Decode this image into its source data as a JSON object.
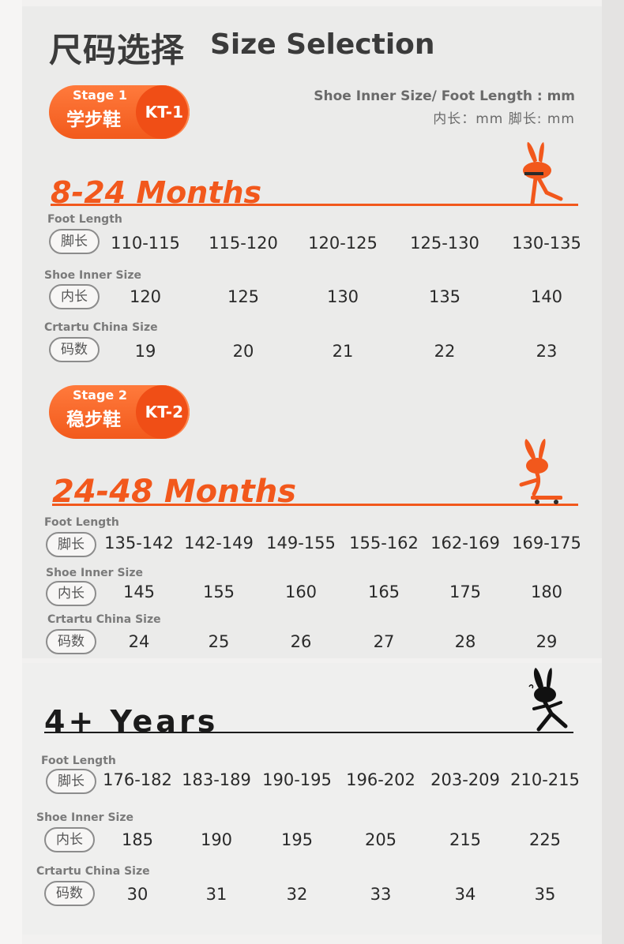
{
  "header": {
    "title_cn": "尺码选择",
    "title_en": "Size Selection"
  },
  "note": {
    "line1": "Shoe Inner Size/ Foot Length : mm",
    "line2": "内长：mm   脚长: mm"
  },
  "row_labels": {
    "foot_length": "Foot Length",
    "inner_size": "Shoe Inner Size",
    "china_size": "Crtartu China Size"
  },
  "chips": {
    "foot_length": "脚长",
    "inner_size": "内长",
    "china_size": "码数"
  },
  "sections": [
    {
      "stage": "Stage 1",
      "stage_cn": "学步鞋",
      "code": "KT-1",
      "range": "8-24 Months",
      "foot_length": [
        "110-115",
        "115-120",
        "120-125",
        "125-130",
        "130-135"
      ],
      "inner_size": [
        "120",
        "125",
        "130",
        "135",
        "140"
      ],
      "china_size": [
        "19",
        "20",
        "21",
        "22",
        "23"
      ]
    },
    {
      "stage": "Stage 2",
      "stage_cn": "稳步鞋",
      "code": "KT-2",
      "range": "24-48 Months",
      "foot_length": [
        "135-142",
        "142-149",
        "149-155",
        "155-162",
        "162-169",
        "169-175"
      ],
      "inner_size": [
        "145",
        "155",
        "160",
        "165",
        "175",
        "180"
      ],
      "china_size": [
        "24",
        "25",
        "26",
        "27",
        "28",
        "29"
      ]
    },
    {
      "range": "4+ Years",
      "foot_length": [
        "176-182",
        "183-189",
        "190-195",
        "196-202",
        "203-209",
        "210-215"
      ],
      "inner_size": [
        "185",
        "190",
        "195",
        "205",
        "215",
        "225"
      ],
      "china_size": [
        "30",
        "31",
        "32",
        "33",
        "34",
        "35"
      ]
    }
  ],
  "colors": {
    "accent": "#f2581c",
    "text": "#2a2a2a",
    "label": "#7a7a7a"
  },
  "icons": [
    "bunny-standing-icon",
    "bunny-skateboard-icon",
    "bunny-walking-icon"
  ]
}
